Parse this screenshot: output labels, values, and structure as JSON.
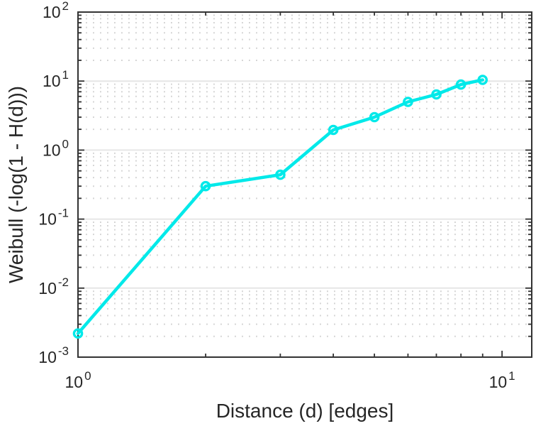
{
  "chart_data": {
    "type": "line",
    "title": "",
    "xlabel": "Distance (d) [edges]",
    "ylabel": "Weibull (-log(1 - H(d)))",
    "x_scale": "log",
    "y_scale": "log",
    "xlim": [
      1,
      11.75
    ],
    "ylim": [
      0.001,
      100
    ],
    "tick_label_base": "10",
    "x_tick_exponents": [
      0,
      1
    ],
    "y_tick_exponents": [
      2,
      1,
      0,
      -1,
      -2,
      -3
    ],
    "x_minor_ticks": [
      2,
      3,
      4,
      5,
      6,
      7,
      8,
      9
    ],
    "grid": {
      "y_major": "solid",
      "y_minor": "dotted",
      "x_grid": "off",
      "box": "on"
    },
    "legend": "none",
    "series": [
      {
        "color": "#00E9E9",
        "marker": "hollow-circle",
        "line_width": 4.5,
        "marker_radius": 5.6,
        "marker_stroke_width": 3.4,
        "x": [
          1,
          2,
          3,
          4,
          5,
          6,
          7,
          8,
          9
        ],
        "y": [
          0.0022,
          0.3,
          0.44,
          1.96,
          3.0,
          5.0,
          6.4,
          8.9,
          10.4
        ]
      }
    ]
  },
  "colors": {
    "background": "#FFFFFF",
    "axis": "#333333",
    "tick_label": "#262626",
    "grid_major": "#E6E6E6",
    "grid_minor": "#D2D2D2",
    "series_cyan": "#00E9E9"
  }
}
